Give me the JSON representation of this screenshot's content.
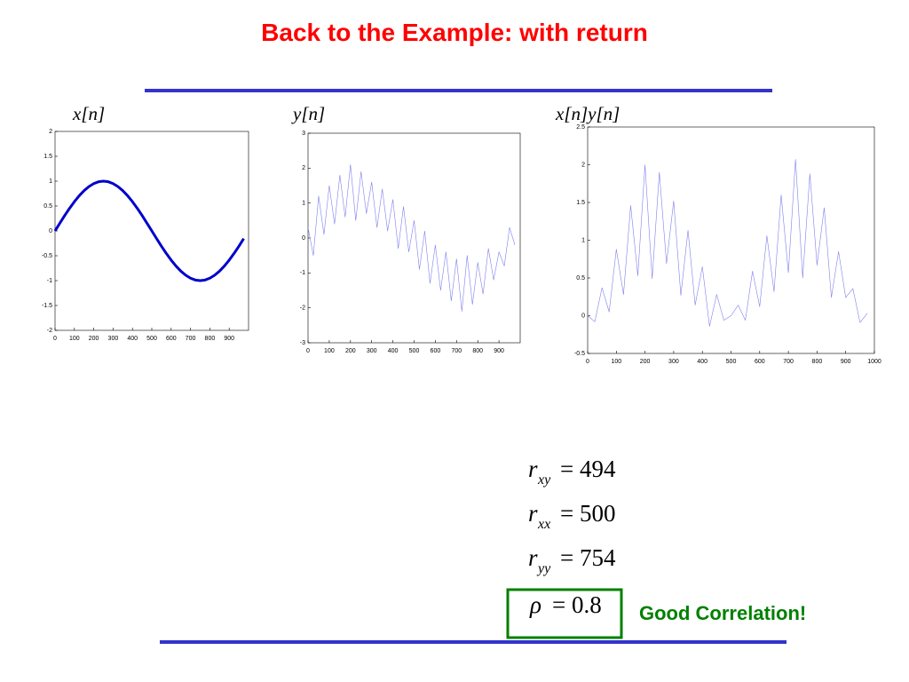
{
  "title": "Back to the Example: with return",
  "chart_data": [
    {
      "type": "line",
      "title": "x[n]",
      "color": "#0000cc",
      "x": [
        0,
        25,
        50,
        75,
        100,
        125,
        150,
        175,
        200,
        225,
        250,
        275,
        300,
        325,
        350,
        375,
        400,
        425,
        450,
        475,
        500,
        525,
        550,
        575,
        600,
        625,
        650,
        675,
        700,
        725,
        750,
        775,
        800,
        825,
        850,
        875,
        900,
        925,
        950,
        975
      ],
      "series": [
        {
          "values": [
            0,
            0.156,
            0.309,
            0.454,
            0.588,
            0.707,
            0.809,
            0.891,
            0.951,
            0.988,
            1,
            0.988,
            0.951,
            0.891,
            0.809,
            0.707,
            0.588,
            0.454,
            0.309,
            0.156,
            0,
            -0.156,
            -0.309,
            -0.454,
            -0.588,
            -0.707,
            -0.809,
            -0.891,
            -0.951,
            -0.988,
            -1,
            -0.988,
            -0.951,
            -0.891,
            -0.809,
            -0.707,
            -0.588,
            -0.454,
            -0.309,
            -0.156
          ]
        }
      ],
      "xlim": [
        0,
        1000
      ],
      "xticks": [
        0,
        100,
        200,
        300,
        400,
        500,
        600,
        700,
        800,
        900
      ],
      "ylim": [
        -2,
        2
      ],
      "yticks": [
        -2,
        -1.5,
        -1,
        -0.5,
        0,
        0.5,
        1,
        1.5,
        2
      ]
    },
    {
      "type": "line",
      "title": "y[n]",
      "color": "#8080ee",
      "x": [
        0,
        25,
        50,
        75,
        100,
        125,
        150,
        175,
        200,
        225,
        250,
        275,
        300,
        325,
        350,
        375,
        400,
        425,
        450,
        475,
        500,
        525,
        550,
        575,
        600,
        625,
        650,
        675,
        700,
        725,
        750,
        775,
        800,
        825,
        850,
        875,
        900,
        925,
        950,
        975
      ],
      "series": [
        {
          "values": [
            0.3,
            -0.5,
            1.2,
            0.1,
            1.5,
            0.4,
            1.8,
            0.6,
            2.1,
            0.5,
            1.9,
            0.7,
            1.6,
            0.3,
            1.4,
            0.2,
            1.1,
            -0.3,
            0.9,
            -0.4,
            0.5,
            -0.9,
            0.2,
            -1.3,
            -0.2,
            -1.5,
            -0.4,
            -1.8,
            -0.6,
            -2.1,
            -0.5,
            -1.9,
            -0.7,
            -1.6,
            -0.3,
            -1.2,
            -0.4,
            -0.8,
            0.3,
            -0.2
          ]
        }
      ],
      "xlim": [
        0,
        1000
      ],
      "xticks": [
        0,
        100,
        200,
        300,
        400,
        500,
        600,
        700,
        800,
        900
      ],
      "ylim": [
        -3,
        3
      ],
      "yticks": [
        -3,
        -2,
        -1,
        0,
        1,
        2,
        3
      ]
    },
    {
      "type": "line",
      "title": "x[n]y[n]",
      "color": "#8080ee",
      "x": [
        0,
        25,
        50,
        75,
        100,
        125,
        150,
        175,
        200,
        225,
        250,
        275,
        300,
        325,
        350,
        375,
        400,
        425,
        450,
        475,
        500,
        525,
        550,
        575,
        600,
        625,
        650,
        675,
        700,
        725,
        750,
        775,
        800,
        825,
        850,
        875,
        900,
        925,
        950,
        975
      ],
      "series": [
        {
          "values": [
            0,
            -0.08,
            0.37,
            0.05,
            0.88,
            0.28,
            1.46,
            0.53,
            2.0,
            0.49,
            1.9,
            0.69,
            1.52,
            0.27,
            1.13,
            0.14,
            0.65,
            -0.14,
            0.28,
            -0.06,
            0,
            0.14,
            -0.06,
            0.59,
            0.12,
            1.06,
            0.32,
            1.6,
            0.57,
            2.07,
            0.5,
            1.88,
            0.67,
            1.43,
            0.24,
            0.85,
            0.24,
            0.36,
            -0.09,
            0.03
          ]
        }
      ],
      "xlim": [
        0,
        1000
      ],
      "xticks": [
        0,
        100,
        200,
        300,
        400,
        500,
        600,
        700,
        800,
        900,
        1000
      ],
      "ylim": [
        -0.5,
        2.5
      ],
      "yticks": [
        -0.5,
        0,
        0.5,
        1,
        1.5,
        2,
        2.5
      ]
    }
  ],
  "equations": [
    {
      "symbol": "r",
      "sub": "xy",
      "rhs": "= 494"
    },
    {
      "symbol": "r",
      "sub": "xx",
      "rhs": "= 500"
    },
    {
      "symbol": "r",
      "sub": "yy",
      "rhs": "= 754"
    },
    {
      "symbol": "ρ",
      "rhs": "= 0.8"
    }
  ],
  "note": "Good Correlation!"
}
